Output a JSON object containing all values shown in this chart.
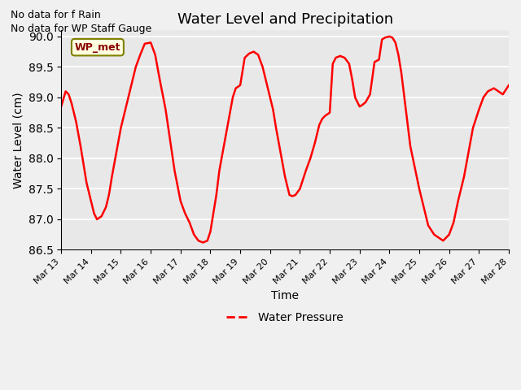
{
  "title": "Water Level and Precipitation",
  "xlabel": "Time",
  "ylabel": "Water Level (cm)",
  "ylim": [
    86.5,
    90.1
  ],
  "xlim": [
    0,
    15
  ],
  "x_tick_labels": [
    "Mar 13",
    "Mar 14",
    "Mar 15",
    "Mar 16",
    "Mar 17",
    "Mar 18",
    "Mar 19",
    "Mar 20",
    "Mar 21",
    "Mar 22",
    "Mar 23",
    "Mar 24",
    "Mar 25",
    "Mar 26",
    "Mar 27",
    "Mar 28"
  ],
  "x_tick_positions": [
    0,
    1,
    2,
    3,
    4,
    5,
    6,
    7,
    8,
    9,
    10,
    11,
    12,
    13,
    14,
    15
  ],
  "line_color": "#ff0000",
  "line_width": 1.8,
  "annotation_texts": [
    "No data for f Rain",
    "No data for WP Staff Gauge"
  ],
  "wp_met_label": "WP_met",
  "legend_label": "Water Pressure",
  "plot_bg_color": "#e8e8e8",
  "fig_bg_color": "#f0f0f0",
  "yticks": [
    86.5,
    87.0,
    87.5,
    88.0,
    88.5,
    89.0,
    89.5,
    90.0
  ],
  "x_data": [
    0.0,
    0.15,
    0.25,
    0.35,
    0.5,
    0.65,
    0.75,
    0.85,
    1.0,
    1.1,
    1.2,
    1.35,
    1.5,
    1.6,
    1.7,
    1.85,
    2.0,
    2.15,
    2.3,
    2.5,
    2.65,
    2.8,
    3.0,
    3.15,
    3.3,
    3.5,
    3.65,
    3.8,
    4.0,
    4.15,
    4.3,
    4.45,
    4.6,
    4.75,
    4.9,
    5.0,
    5.1,
    5.2,
    5.3,
    5.45,
    5.6,
    5.75,
    5.85,
    6.0,
    6.15,
    6.3,
    6.45,
    6.6,
    6.75,
    6.85,
    7.0,
    7.1,
    7.2,
    7.35,
    7.5,
    7.65,
    7.75,
    7.85,
    8.0,
    8.1,
    8.2,
    8.35,
    8.5,
    8.65,
    8.75,
    8.85,
    9.0,
    9.1,
    9.2,
    9.35,
    9.5,
    9.65,
    9.75,
    9.85,
    10.0,
    10.1,
    10.2,
    10.35,
    10.5,
    10.65,
    10.75,
    10.85,
    11.0,
    11.1,
    11.2,
    11.3,
    11.4,
    11.5,
    11.6,
    11.7,
    11.85,
    12.0,
    12.15,
    12.3,
    12.5,
    12.65,
    12.8,
    13.0,
    13.15,
    13.3,
    13.5,
    13.65,
    13.8,
    14.0,
    14.15,
    14.3,
    14.5,
    14.65,
    14.8,
    15.0
  ],
  "y_data": [
    88.85,
    89.1,
    89.05,
    88.9,
    88.6,
    88.2,
    87.9,
    87.6,
    87.3,
    87.1,
    87.0,
    87.05,
    87.2,
    87.4,
    87.7,
    88.1,
    88.5,
    88.8,
    89.1,
    89.5,
    89.7,
    89.88,
    89.9,
    89.7,
    89.3,
    88.8,
    88.3,
    87.8,
    87.3,
    87.1,
    86.95,
    86.75,
    86.65,
    86.62,
    86.65,
    86.8,
    87.1,
    87.4,
    87.8,
    88.2,
    88.6,
    89.0,
    89.15,
    89.2,
    89.65,
    89.72,
    89.75,
    89.7,
    89.5,
    89.3,
    89.0,
    88.8,
    88.5,
    88.1,
    87.7,
    87.4,
    87.38,
    87.4,
    87.5,
    87.65,
    87.8,
    88.0,
    88.25,
    88.55,
    88.65,
    88.7,
    88.75,
    89.55,
    89.65,
    89.68,
    89.65,
    89.55,
    89.3,
    89.0,
    88.85,
    88.88,
    88.92,
    89.05,
    89.58,
    89.62,
    89.95,
    89.98,
    90.0,
    89.98,
    89.9,
    89.7,
    89.4,
    89.0,
    88.6,
    88.2,
    87.85,
    87.5,
    87.2,
    86.9,
    86.75,
    86.7,
    86.65,
    86.75,
    86.95,
    87.3,
    87.7,
    88.1,
    88.5,
    88.8,
    89.0,
    89.1,
    89.15,
    89.1,
    89.05,
    89.2
  ]
}
